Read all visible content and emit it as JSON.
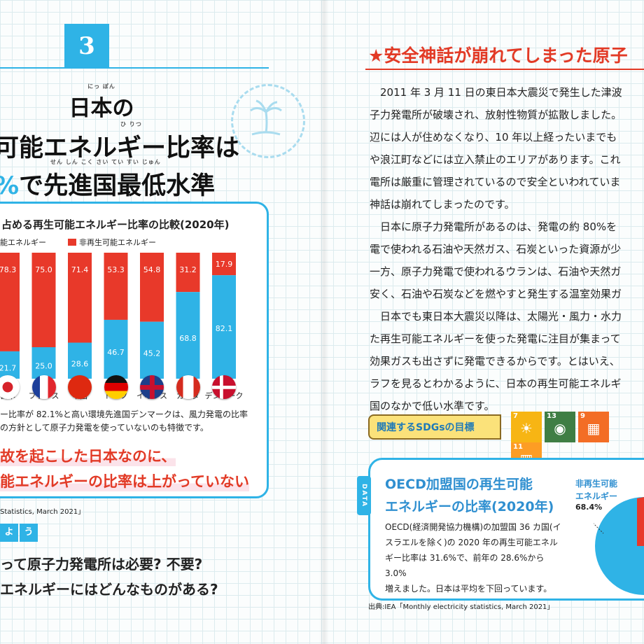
{
  "section_number": "3",
  "left": {
    "title_line1": "日本の",
    "title_line2": "可能エネルギー比率は",
    "title_line3_pct": "%",
    "title_line3_rest": "で先進国最低水準",
    "ruby_title1": "にっ ぽん",
    "ruby_title2": "ひ りつ",
    "ruby_title3": "せん しん こく さい てい すい じゅん",
    "chart_title": "占める再生可能エネルギー比率の比較(2020年)",
    "legend_renewable": "能エネルギー",
    "legend_nonrenewable": "非再生可能エネルギー",
    "caption_line1": "ー比率が 82.1%と高い環境先進国デンマークは、風力発電の比率",
    "caption_line2": "の方針として原子力発電を使っていないのも特徴です。",
    "emph_line1": "故を起こした日本なのに、",
    "emph_line2": "能エネルギーの比率は上がっていない",
    "source": "Statistics, March 2021」",
    "study_tiles": [
      "よ",
      "う"
    ],
    "question1": "って原子力発電所は必要? 不要?",
    "question2": "エネルギーにはどんなものがある?"
  },
  "chart_data": {
    "type": "bar",
    "stacked": true,
    "title": "占める再生可能エネルギー比率の比較(2020年)",
    "categories": [
      "日本",
      "フランス",
      "中国",
      "ドイツ",
      "イギリス",
      "カナダ",
      "デンマーク"
    ],
    "series": [
      {
        "name": "再生可能エネルギー",
        "values": [
          21.7,
          25.0,
          28.6,
          46.7,
          45.2,
          68.8,
          82.1
        ]
      },
      {
        "name": "非再生可能エネルギー",
        "values": [
          78.3,
          75.0,
          71.4,
          53.3,
          54.8,
          31.2,
          17.9
        ]
      }
    ],
    "value_labels_renewable": [
      "21.7",
      "25.0",
      "28.6",
      "46.7",
      "45.2",
      "68.8",
      "82.1"
    ],
    "value_labels_nonrenewable": [
      "78.3",
      "75.0",
      "71.4",
      "53.3",
      "54.8",
      "31.2",
      "17.9"
    ],
    "ylim": [
      0,
      100
    ],
    "colors": {
      "renewable": "#2fb3e6",
      "nonrenewable": "#e8392a"
    }
  },
  "right": {
    "title": "★安全神話が崩れてしまった原子",
    "paragraph1": [
      "2011 年 3 月 11 日の東日本大震災で発生した津波",
      "子力発電所が破壊され、放射性物質が拡散しました。",
      "辺には人が住めなくなり、10 年以上経ったいまでも",
      "や浪江町などには立入禁止のエリアがあります。これ",
      "電所は厳重に管理されているので安全といわれていま",
      "神話は崩れてしまったのです。"
    ],
    "paragraph2": [
      "日本に原子力発電所があるのは、発電の約 80%を",
      "電で使われる石油や天然ガス、石炭といった資源が少",
      "一方、原子力発電で使われるウランは、石油や天然ガ",
      "安く、石油や石炭などを燃やすと発生する温室効果ガ"
    ],
    "paragraph3": [
      "日本でも東日本大震災以降は、太陽光・風力・水力",
      "た再生可能エネルギーを使った発電に注目が集まって",
      "効果ガスも出さずに発電できるからです。とはいえ、",
      "ラフを見るとわかるように、日本の再生可能エネルギ",
      "国のなかで低い水準です。"
    ],
    "sdg_label": "関連するSDGsの目標",
    "sdg_goals": [
      {
        "num": "7",
        "glyph": "☀",
        "color": "#f7b514"
      },
      {
        "num": "13",
        "glyph": "◉",
        "color": "#3f7e44"
      },
      {
        "num": "9",
        "glyph": "▦",
        "color": "#f36d25"
      },
      {
        "num": "11",
        "glyph": "▥",
        "color": "#fd9d24"
      }
    ],
    "data_tab": "DATA",
    "data_title_line1": "OECD加盟国の再生可能",
    "data_title_line2": "エネルギーの比率(2020年)",
    "data_body": [
      "OECD(経済開発協力機構)の加盟国 36 カ国(イ",
      "スラエルを除く)の 2020 年の再生可能エネル",
      "ギー比率は 31.6%で、前年の 28.6%から 3.0%",
      "増えました。日本は平均を下回っています。"
    ],
    "pie_label_line1": "非再生可能",
    "pie_label_line2": "エネルギー",
    "pie_value": "68.4%",
    "source": "出典:IEA「Monthly electricity statistics, March 2021」"
  }
}
